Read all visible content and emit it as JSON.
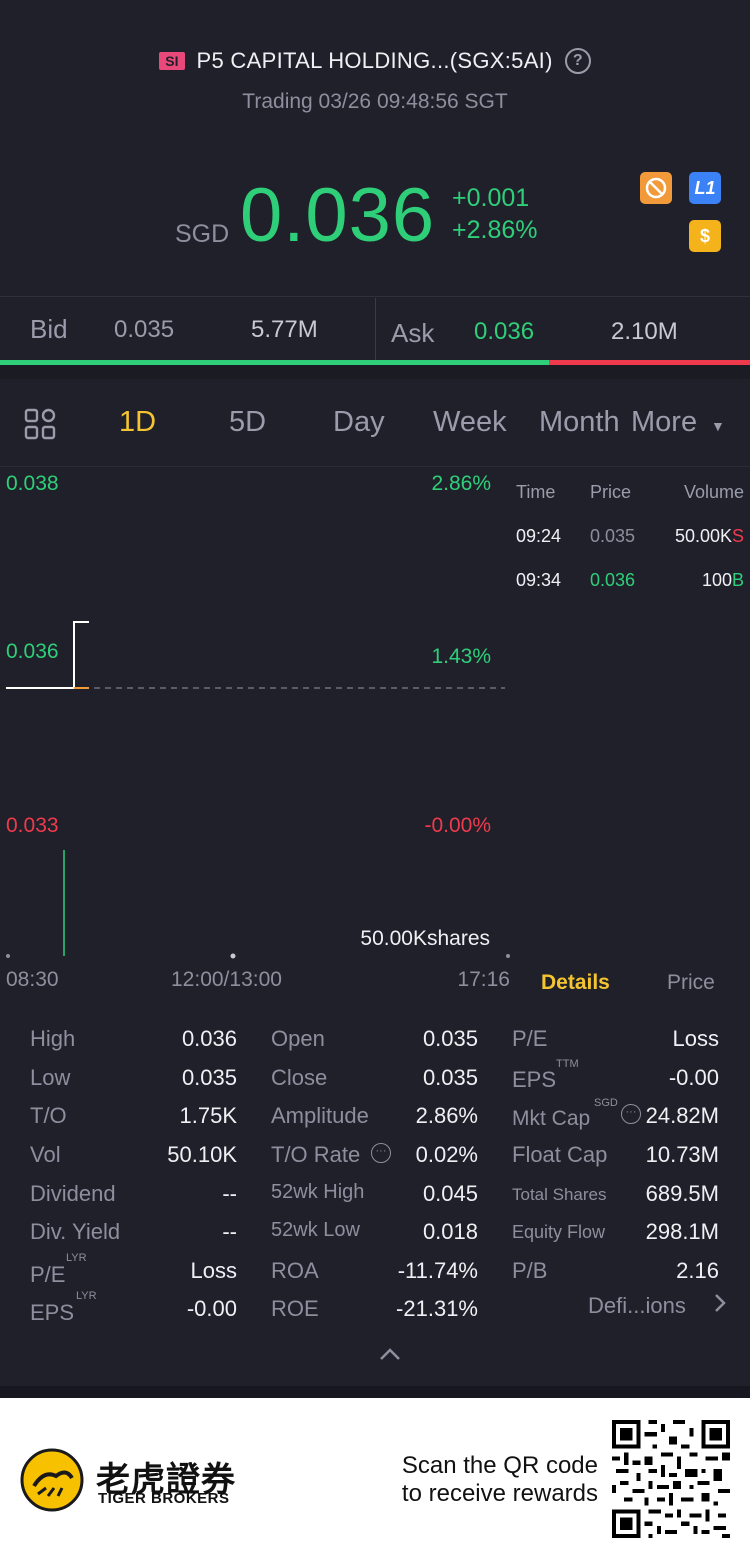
{
  "header": {
    "exchange_badge": "SI",
    "title": "P5 CAPITAL HOLDING...(SGX:5AI)",
    "help": "?",
    "status": "Trading 03/26 09:48:56 SGT"
  },
  "quote": {
    "currency": "SGD",
    "price": "0.036",
    "change": "+0.001",
    "change_pct": "+2.86%",
    "badges": [
      {
        "name": "no-short-icon",
        "color": "#f29a3a"
      },
      {
        "name": "level1-icon",
        "label": "L1",
        "color": "#3b82f6"
      },
      {
        "name": "dollar-icon",
        "label": "$",
        "color": "#f4b21b"
      }
    ]
  },
  "bidask": {
    "bid_label": "Bid",
    "bid_price": "0.035",
    "bid_size": "5.77M",
    "ask_label": "Ask",
    "ask_price": "0.036",
    "ask_size": "2.10M",
    "bid_ratio": 0.732
  },
  "tabs": [
    "1D",
    "5D",
    "Day",
    "Week",
    "Month",
    "More"
  ],
  "chart": {
    "y_labels": [
      "0.038",
      "0.036",
      "0.033"
    ],
    "pct_labels": [
      "2.86%",
      "1.43%",
      "-0.00%"
    ],
    "x_labels": [
      "08:30",
      "12:00/13:00",
      "17:16"
    ],
    "volume_label": "50.00Kshares",
    "colors": {
      "up": "#2fcf7a",
      "down": "#ef3a4d",
      "line": "#ffffff",
      "avg": "#f29a3a"
    }
  },
  "trades": {
    "headers": [
      "Time",
      "Price",
      "Volume"
    ],
    "rows": [
      {
        "time": "09:24",
        "price": "0.035",
        "volume": "50.00K",
        "side": "S"
      },
      {
        "time": "09:34",
        "price": "0.036",
        "volume": "100",
        "side": "B"
      }
    ]
  },
  "side_tabs": {
    "details": "Details",
    "price": "Price"
  },
  "details": {
    "col1": [
      {
        "label": "High",
        "value": "0.036"
      },
      {
        "label": "Low",
        "value": "0.035"
      },
      {
        "label": "T/O",
        "value": "1.75K"
      },
      {
        "label": "Vol",
        "value": "50.10K"
      },
      {
        "label": "Dividend",
        "value": "--"
      },
      {
        "label": "Div. Yield",
        "value": "--"
      },
      {
        "label": "P/E",
        "sup": "LYR",
        "value": "Loss"
      },
      {
        "label": "EPS",
        "sup": "LYR",
        "value": "-0.00"
      }
    ],
    "col2": [
      {
        "label": "Open",
        "value": "0.035"
      },
      {
        "label": "Close",
        "value": "0.035"
      },
      {
        "label": "Amplitude",
        "value": "2.86%"
      },
      {
        "label": "T/O Rate",
        "value": "0.02%"
      },
      {
        "label": "52wk High",
        "value": "0.045"
      },
      {
        "label": "52wk Low",
        "value": "0.018"
      },
      {
        "label": "ROA",
        "value": "-11.74%"
      },
      {
        "label": "ROE",
        "value": "-21.31%"
      }
    ],
    "col3": [
      {
        "label": "P/E",
        "value": "Loss"
      },
      {
        "label": "EPS",
        "sup": "TTM",
        "value": "-0.00"
      },
      {
        "label": "Mkt Cap",
        "sup": "SGD",
        "value": "24.82M"
      },
      {
        "label": "Float Cap",
        "value": "10.73M"
      },
      {
        "label": "Total Shares",
        "value": "689.5M"
      },
      {
        "label": "Equity Flow",
        "value": "298.1M"
      },
      {
        "label": "P/B",
        "value": "2.16"
      }
    ],
    "definitions": "Defi...ions"
  },
  "footer": {
    "brand_cn": "老虎證券",
    "brand_en": "TIGER BROKERS",
    "promo_line1": "Scan the QR code",
    "promo_line2": "to receive rewards"
  }
}
